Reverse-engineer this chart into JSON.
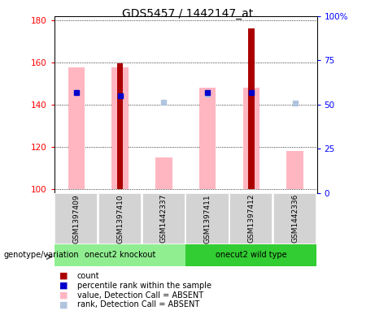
{
  "title": "GDS5457 / 1442147_at",
  "samples": [
    "GSM1397409",
    "GSM1397410",
    "GSM1442337",
    "GSM1397411",
    "GSM1397412",
    "GSM1442336"
  ],
  "ylim_left": [
    98,
    182
  ],
  "ylim_right": [
    0,
    100
  ],
  "yticks_left": [
    100,
    120,
    140,
    160,
    180
  ],
  "yticks_right": [
    0,
    25,
    50,
    75,
    100
  ],
  "ytick_labels_right": [
    "0",
    "25",
    "50",
    "75",
    "100%"
  ],
  "count_values": [
    0,
    159.5,
    0,
    0,
    176.0,
    0
  ],
  "rank_values": [
    145.5,
    144.0,
    0,
    145.5,
    145.5,
    0
  ],
  "absent_value_values": [
    157.5,
    157.5,
    115.0,
    148.0,
    148.0,
    118.0
  ],
  "absent_rank_values": [
    145.5,
    0,
    141.0,
    145.0,
    0,
    140.5
  ],
  "bar_bottom": 100,
  "count_color": "#AA0000",
  "rank_color": "#0000CC",
  "absent_value_color": "#FFB6C1",
  "absent_rank_color": "#B0C4DE",
  "knockout_color": "#90EE90",
  "wildtype_color": "#32CD32",
  "legend_items": [
    {
      "label": "count",
      "color": "#AA0000"
    },
    {
      "label": "percentile rank within the sample",
      "color": "#0000CC"
    },
    {
      "label": "value, Detection Call = ABSENT",
      "color": "#FFB6C1"
    },
    {
      "label": "rank, Detection Call = ABSENT",
      "color": "#B0C4DE"
    }
  ]
}
